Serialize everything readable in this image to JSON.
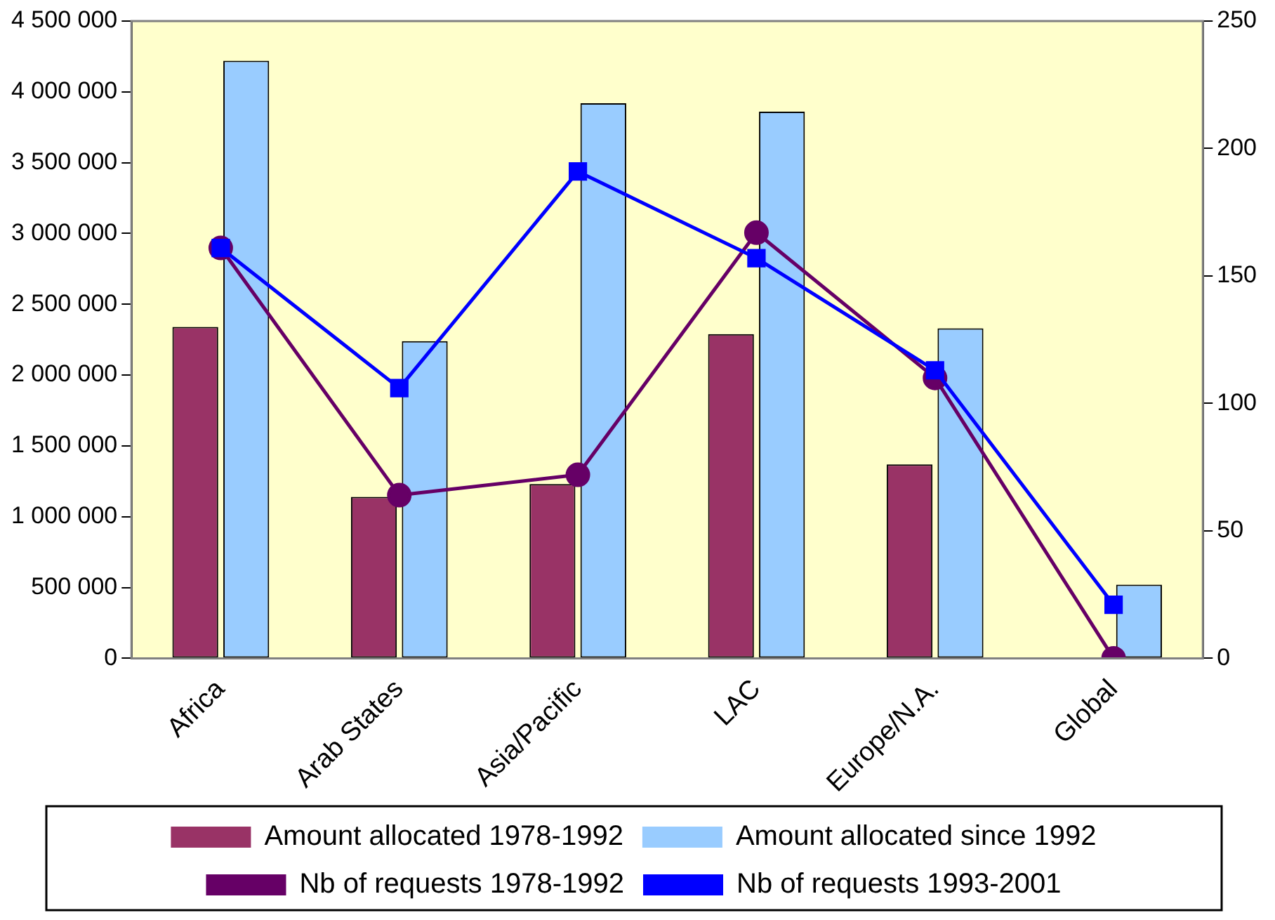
{
  "chart_data": {
    "type": "bar",
    "categories": [
      "Africa",
      "Arab States",
      "Asia/Pacific",
      "LAC",
      "Europe/N.A.",
      "Global"
    ],
    "series": [
      {
        "name": "Amount allocated 1978-1992",
        "color": "#993366",
        "values": [
          2340000,
          1140000,
          1230000,
          2290000,
          1370000,
          null
        ]
      },
      {
        "name": "Amount allocated since 1992",
        "color": "#99ccff",
        "values": [
          4220000,
          2240000,
          3920000,
          3860000,
          2330000,
          520000
        ]
      },
      {
        "name": "Nb of requests 1978-1992",
        "type": "line",
        "axis": "y2",
        "color": "#660066",
        "marker": "circle",
        "values": [
          161,
          64,
          72,
          167,
          110,
          0
        ]
      },
      {
        "name": "Nb of requests 1993-2001",
        "type": "line",
        "axis": "y2",
        "color": "#0000ff",
        "marker": "square",
        "values": [
          161,
          106,
          191,
          157,
          113,
          21
        ]
      }
    ],
    "ylim": [
      0,
      4500000
    ],
    "yticks": [
      {
        "value": 0,
        "label": "0"
      },
      {
        "value": 500000,
        "label": "500 000"
      },
      {
        "value": 1000000,
        "label": "1 000 000"
      },
      {
        "value": 1500000,
        "label": "1 500 000"
      },
      {
        "value": 2000000,
        "label": "2 000 000"
      },
      {
        "value": 2500000,
        "label": "2 500 000"
      },
      {
        "value": 3000000,
        "label": "3 000 000"
      },
      {
        "value": 3500000,
        "label": "3 500 000"
      },
      {
        "value": 4000000,
        "label": "4 000 000"
      },
      {
        "value": 4500000,
        "label": "4 500 000"
      }
    ],
    "y2lim": [
      0,
      250
    ],
    "y2ticks": [
      0,
      50,
      100,
      150,
      200,
      250
    ],
    "grid": false,
    "legend": "bottom"
  }
}
